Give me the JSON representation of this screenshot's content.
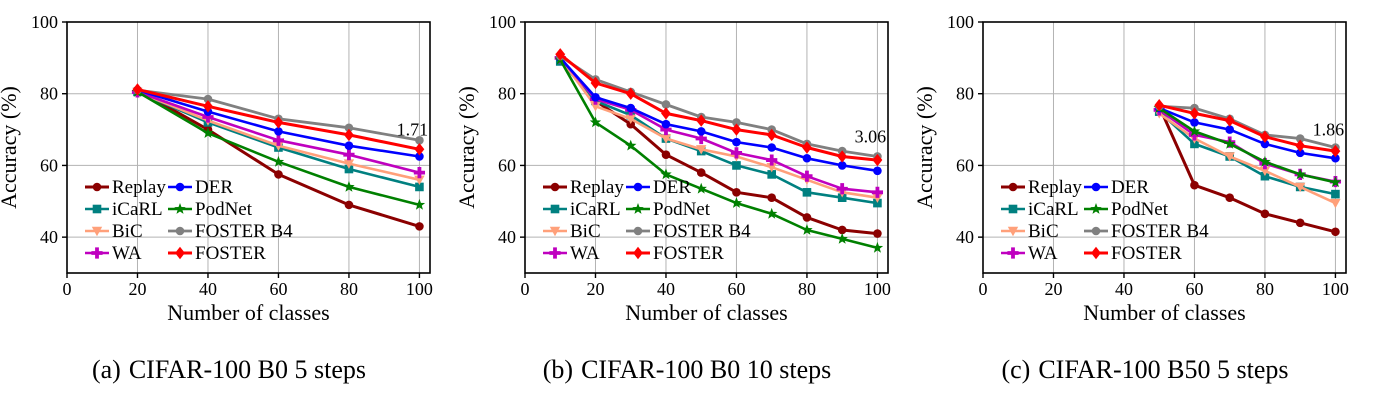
{
  "figure": {
    "background": "#ffffff",
    "text_color": "#000000",
    "grid_color": "#b3b3b3",
    "spine_color": "#000000"
  },
  "captions": [
    {
      "label": "(a)",
      "text": "CIFAR-100 B0 5 steps"
    },
    {
      "label": "(b)",
      "text": "CIFAR-100 B0 10 steps"
    },
    {
      "label": "(c)",
      "text": "CIFAR-100 B50 5 steps"
    }
  ],
  "chart_data": [
    {
      "type": "line",
      "title": "",
      "xlabel": "Number of classes",
      "ylabel": "Accuracy (%)",
      "xlim": [
        0,
        103
      ],
      "ylim": [
        30,
        100
      ],
      "xticks": [
        0,
        20,
        40,
        60,
        80,
        100
      ],
      "yticks": [
        40,
        60,
        80,
        100
      ],
      "grid": true,
      "legend_position": "lower-left",
      "legend_columns": 2,
      "annotation": {
        "text": "1.71",
        "x": 98,
        "y": 70
      },
      "x": [
        20,
        40,
        60,
        80,
        100
      ],
      "series": [
        {
          "name": "Replay",
          "color": "#8B0000",
          "marker": "circle",
          "lw": 3,
          "values": [
            81,
            70,
            57.5,
            49,
            43
          ]
        },
        {
          "name": "iCaRL",
          "color": "#008080",
          "marker": "square",
          "lw": 2.6,
          "values": [
            80.5,
            72,
            65,
            59,
            54
          ]
        },
        {
          "name": "BiC",
          "color": "#FFA07A",
          "marker": "triangle-down",
          "lw": 2.6,
          "values": [
            80.5,
            72.5,
            65.5,
            60.5,
            56
          ]
        },
        {
          "name": "WA",
          "color": "#BF00BF",
          "marker": "plus",
          "lw": 2.6,
          "values": [
            80.5,
            73.5,
            67,
            63,
            58
          ]
        },
        {
          "name": "DER",
          "color": "#0000FF",
          "marker": "circle",
          "lw": 2.6,
          "values": [
            81,
            75,
            69.5,
            65.5,
            62.5
          ]
        },
        {
          "name": "PodNet",
          "color": "#008000",
          "marker": "star",
          "lw": 2.6,
          "values": [
            80.5,
            69,
            61,
            54,
            49
          ]
        },
        {
          "name": "FOSTER B4",
          "color": "#808080",
          "marker": "circle",
          "lw": 2.8,
          "values": [
            81,
            78.5,
            73,
            70.5,
            67
          ]
        },
        {
          "name": "FOSTER",
          "color": "#FF0000",
          "marker": "diamond",
          "lw": 3,
          "values": [
            81.2,
            76.5,
            72,
            68.5,
            64.5
          ]
        }
      ]
    },
    {
      "type": "line",
      "title": "",
      "xlabel": "Number of classes",
      "ylabel": "Accuracy (%)",
      "xlim": [
        0,
        103
      ],
      "ylim": [
        30,
        100
      ],
      "xticks": [
        0,
        20,
        40,
        60,
        80,
        100
      ],
      "yticks": [
        40,
        60,
        80,
        100
      ],
      "grid": true,
      "legend_position": "lower-left",
      "legend_columns": 2,
      "annotation": {
        "text": "3.06",
        "x": 98,
        "y": 68
      },
      "x": [
        10,
        20,
        30,
        40,
        50,
        60,
        70,
        80,
        90,
        100
      ],
      "series": [
        {
          "name": "Replay",
          "color": "#8B0000",
          "marker": "circle",
          "lw": 3,
          "values": [
            90,
            78,
            71.5,
            63,
            58,
            52.5,
            51,
            45.5,
            42,
            41
          ]
        },
        {
          "name": "iCaRL",
          "color": "#008080",
          "marker": "square",
          "lw": 2.6,
          "values": [
            89,
            78,
            74,
            67.5,
            64,
            60,
            57.5,
            52.5,
            51,
            49.5
          ]
        },
        {
          "name": "BiC",
          "color": "#FFA07A",
          "marker": "triangle-down",
          "lw": 2.6,
          "values": [
            90,
            76.5,
            73,
            67.5,
            64.5,
            62.5,
            59.5,
            56,
            52.5,
            51
          ]
        },
        {
          "name": "WA",
          "color": "#BF00BF",
          "marker": "plus",
          "lw": 2.6,
          "values": [
            90,
            78.5,
            75.5,
            70,
            67.5,
            63.5,
            61.5,
            57,
            53.5,
            52.5
          ]
        },
        {
          "name": "DER",
          "color": "#0000FF",
          "marker": "circle",
          "lw": 2.6,
          "values": [
            90,
            79,
            76,
            71.5,
            69.5,
            66.5,
            65,
            62,
            60,
            58.5
          ]
        },
        {
          "name": "PodNet",
          "color": "#008000",
          "marker": "star",
          "lw": 2.6,
          "values": [
            89.5,
            72,
            65.5,
            57.5,
            53.5,
            49.5,
            46.5,
            42,
            39.5,
            37
          ]
        },
        {
          "name": "FOSTER B4",
          "color": "#808080",
          "marker": "circle",
          "lw": 2.8,
          "values": [
            90.5,
            84,
            80.5,
            77,
            73.5,
            72,
            70,
            66,
            64,
            62.5
          ]
        },
        {
          "name": "FOSTER",
          "color": "#FF0000",
          "marker": "diamond",
          "lw": 3,
          "values": [
            91,
            83,
            80,
            74.5,
            72.5,
            70,
            68.5,
            65,
            62.5,
            61.5
          ]
        }
      ]
    },
    {
      "type": "line",
      "title": "",
      "xlabel": "Number of classes",
      "ylabel": "Accuracy (%)",
      "xlim": [
        0,
        103
      ],
      "ylim": [
        30,
        100
      ],
      "xticks": [
        0,
        20,
        40,
        60,
        80,
        100
      ],
      "yticks": [
        40,
        60,
        80,
        100
      ],
      "grid": true,
      "legend_position": "lower-left",
      "legend_columns": 2,
      "annotation": {
        "text": "1.86",
        "x": 98,
        "y": 70
      },
      "x": [
        50,
        60,
        70,
        80,
        90,
        100
      ],
      "series": [
        {
          "name": "Replay",
          "color": "#8B0000",
          "marker": "circle",
          "lw": 3,
          "values": [
            76.5,
            54.5,
            51,
            46.5,
            44,
            41.5
          ]
        },
        {
          "name": "iCaRL",
          "color": "#008080",
          "marker": "square",
          "lw": 2.6,
          "values": [
            75,
            66,
            62.5,
            57,
            54,
            52
          ]
        },
        {
          "name": "BiC",
          "color": "#FFA07A",
          "marker": "triangle-down",
          "lw": 2.6,
          "values": [
            74.5,
            67.5,
            62.5,
            58.5,
            54,
            49.5
          ]
        },
        {
          "name": "WA",
          "color": "#BF00BF",
          "marker": "plus",
          "lw": 2.6,
          "values": [
            75.5,
            68.5,
            66.5,
            60.5,
            57.5,
            55.5
          ]
        },
        {
          "name": "DER",
          "color": "#0000FF",
          "marker": "circle",
          "lw": 2.6,
          "values": [
            76,
            72,
            70,
            66,
            63.5,
            62
          ]
        },
        {
          "name": "PodNet",
          "color": "#008000",
          "marker": "star",
          "lw": 2.6,
          "values": [
            76,
            69.5,
            66,
            61,
            57.5,
            55.3
          ]
        },
        {
          "name": "FOSTER B4",
          "color": "#808080",
          "marker": "circle",
          "lw": 2.8,
          "values": [
            76.5,
            76,
            73,
            68.5,
            67.5,
            65
          ]
        },
        {
          "name": "FOSTER",
          "color": "#FF0000",
          "marker": "diamond",
          "lw": 3,
          "values": [
            76.8,
            74.5,
            72.5,
            68,
            65.5,
            64
          ]
        }
      ]
    }
  ]
}
